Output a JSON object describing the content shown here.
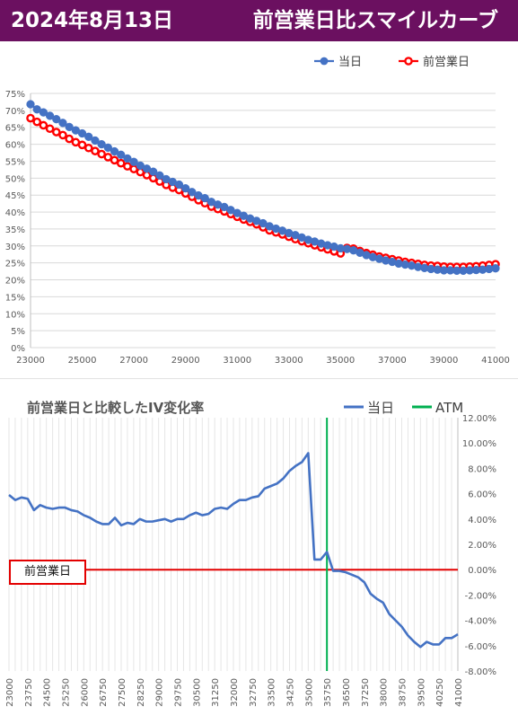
{
  "header": {
    "date": "2024年8月13日",
    "title": "前営業日比スマイルカーブ"
  },
  "colors": {
    "header_bg": "#6b1060",
    "today": "#4472c4",
    "prev": "#ff0000",
    "atm": "#00b050",
    "change": "#4472c4",
    "zero": "#e30000"
  },
  "chart_data": [
    {
      "type": "line",
      "title": "",
      "xlabel": "",
      "ylabel": "",
      "xlim": [
        23000,
        41000
      ],
      "ylim": [
        0,
        75
      ],
      "x_ticks": [
        "23000",
        "25000",
        "27000",
        "29000",
        "31000",
        "33000",
        "35000",
        "37000",
        "39000",
        "41000"
      ],
      "y_ticks": [
        "0%",
        "5%",
        "10%",
        "15%",
        "20%",
        "25%",
        "30%",
        "35%",
        "40%",
        "45%",
        "50%",
        "55%",
        "60%",
        "65%",
        "70%",
        "75%"
      ],
      "legend": "top-right",
      "series": [
        {
          "name": "当日",
          "color": "#4472c4",
          "x": [
            23000,
            23250,
            23500,
            23750,
            24000,
            24250,
            24500,
            24750,
            25000,
            25250,
            25500,
            25750,
            26000,
            26250,
            26500,
            26750,
            27000,
            27250,
            27500,
            27750,
            28000,
            28250,
            28500,
            28750,
            29000,
            29250,
            29500,
            29750,
            30000,
            30250,
            30500,
            30750,
            31000,
            31250,
            31500,
            31750,
            32000,
            32250,
            32500,
            32750,
            33000,
            33250,
            33500,
            33750,
            34000,
            34250,
            34500,
            34750,
            35000,
            35250,
            35500,
            35750,
            36000,
            36250,
            36500,
            36750,
            37000,
            37250,
            37500,
            37750,
            38000,
            38250,
            38500,
            38750,
            39000,
            39250,
            39500,
            39750,
            40000,
            40250,
            40500,
            40750,
            41000
          ],
          "y": [
            71.8,
            70.3,
            69.4,
            68.4,
            67.4,
            66.3,
            65.1,
            64.1,
            63.2,
            62.2,
            61.1,
            60.0,
            59.0,
            57.9,
            56.9,
            55.8,
            54.8,
            53.7,
            52.8,
            51.9,
            50.8,
            49.7,
            48.9,
            48.1,
            47.0,
            45.9,
            44.9,
            44.1,
            43.0,
            42.2,
            41.5,
            40.6,
            39.7,
            38.9,
            38.1,
            37.4,
            36.7,
            35.8,
            35.1,
            34.5,
            33.8,
            33.2,
            32.5,
            31.8,
            31.3,
            30.7,
            30.2,
            29.8,
            29.3,
            29.1,
            28.7,
            28.0,
            27.3,
            26.7,
            26.2,
            25.7,
            25.3,
            24.8,
            24.5,
            24.2,
            23.8,
            23.5,
            23.2,
            23.0,
            22.8,
            22.8,
            22.7,
            22.7,
            22.8,
            22.9,
            23.0,
            23.2,
            23.4
          ]
        },
        {
          "name": "前営業日",
          "color": "#ff0000",
          "x": [
            23000,
            23250,
            23500,
            23750,
            24000,
            24250,
            24500,
            24750,
            25000,
            25250,
            25500,
            25750,
            26000,
            26250,
            26500,
            26750,
            27000,
            27250,
            27500,
            27750,
            28000,
            28250,
            28500,
            28750,
            29000,
            29250,
            29500,
            29750,
            30000,
            30250,
            30500,
            30750,
            31000,
            31250,
            31500,
            31750,
            32000,
            32250,
            32500,
            32750,
            33000,
            33250,
            33500,
            33750,
            34000,
            34250,
            34500,
            34750,
            35000,
            35250,
            35500,
            35750,
            36000,
            36250,
            36500,
            36750,
            37000,
            37250,
            37500,
            37750,
            38000,
            38250,
            38500,
            38750,
            39000,
            39250,
            39500,
            39750,
            40000,
            40250,
            40500,
            40750,
            41000
          ],
          "y": [
            67.7,
            66.6,
            65.6,
            64.6,
            63.6,
            62.7,
            61.6,
            60.6,
            59.8,
            58.9,
            58.0,
            57.1,
            56.2,
            55.3,
            54.4,
            53.5,
            52.7,
            51.8,
            50.9,
            50.0,
            49.0,
            48.0,
            47.2,
            46.5,
            45.5,
            44.5,
            43.5,
            42.6,
            41.6,
            40.9,
            40.2,
            39.4,
            38.6,
            37.8,
            37.1,
            36.4,
            35.5,
            34.6,
            34.0,
            33.4,
            32.7,
            32.0,
            31.4,
            30.8,
            30.2,
            29.6,
            29.0,
            28.4,
            27.8,
            29.4,
            29.2,
            28.5,
            27.9,
            27.4,
            26.9,
            26.5,
            26.1,
            25.7,
            25.3,
            25.0,
            24.7,
            24.4,
            24.2,
            24.1,
            23.9,
            23.8,
            23.8,
            23.8,
            23.9,
            24.0,
            24.2,
            24.4,
            24.6
          ]
        }
      ]
    },
    {
      "type": "line",
      "title": "前営業日と比較したIV変化率",
      "xlabel": "",
      "ylabel": "",
      "xlim": [
        23000,
        41000
      ],
      "ylim": [
        -8,
        12
      ],
      "x_ticks": [
        "23000",
        "23750",
        "24500",
        "25250",
        "26000",
        "26750",
        "27500",
        "28250",
        "29000",
        "29750",
        "30500",
        "31250",
        "32000",
        "32750",
        "33500",
        "34250",
        "35000",
        "35750",
        "36500",
        "37250",
        "38000",
        "38750",
        "39500",
        "40250",
        "41000"
      ],
      "y_ticks": [
        "12.00%",
        "10.00%",
        "8.00%",
        "6.00%",
        "4.00%",
        "2.00%",
        "0.00%",
        "-2.00%",
        "-4.00%",
        "-6.00%",
        "-8.00%"
      ],
      "legend": "top-right",
      "atm_x": 35750,
      "reference_label": "前営業日",
      "series": [
        {
          "name": "当日",
          "color": "#4472c4",
          "x": [
            23000,
            23250,
            23500,
            23750,
            24000,
            24250,
            24500,
            24750,
            25000,
            25250,
            25500,
            25750,
            26000,
            26250,
            26500,
            26750,
            27000,
            27250,
            27500,
            27750,
            28000,
            28250,
            28500,
            28750,
            29000,
            29250,
            29500,
            29750,
            30000,
            30250,
            30500,
            30750,
            31000,
            31250,
            31500,
            31750,
            32000,
            32250,
            32500,
            32750,
            33000,
            33250,
            33500,
            33750,
            34000,
            34250,
            34500,
            34750,
            35000,
            35250,
            35500,
            35750,
            36000,
            36250,
            36500,
            36750,
            37000,
            37250,
            37500,
            37750,
            38000,
            38250,
            38500,
            38750,
            39000,
            39250,
            39500,
            39750,
            40000,
            40250,
            40500,
            40750,
            41000
          ],
          "y": [
            5.9,
            5.5,
            5.7,
            5.6,
            4.7,
            5.1,
            4.9,
            4.8,
            4.9,
            4.9,
            4.7,
            4.6,
            4.3,
            4.1,
            3.8,
            3.6,
            3.6,
            4.1,
            3.5,
            3.7,
            3.6,
            4.0,
            3.8,
            3.8,
            3.9,
            4.0,
            3.8,
            4.0,
            4.0,
            4.3,
            4.5,
            4.3,
            4.4,
            4.8,
            4.9,
            4.8,
            5.2,
            5.5,
            5.5,
            5.7,
            5.8,
            6.4,
            6.6,
            6.8,
            7.2,
            7.8,
            8.2,
            8.5,
            9.2,
            0.8,
            0.8,
            1.4,
            -0.1,
            -0.1,
            -0.2,
            -0.4,
            -0.6,
            -1.0,
            -1.9,
            -2.3,
            -2.6,
            -3.5,
            -4.0,
            -4.5,
            -5.2,
            -5.7,
            -6.1,
            -5.7,
            -5.9,
            -5.9,
            -5.4,
            -5.4,
            -5.1
          ]
        }
      ]
    }
  ]
}
